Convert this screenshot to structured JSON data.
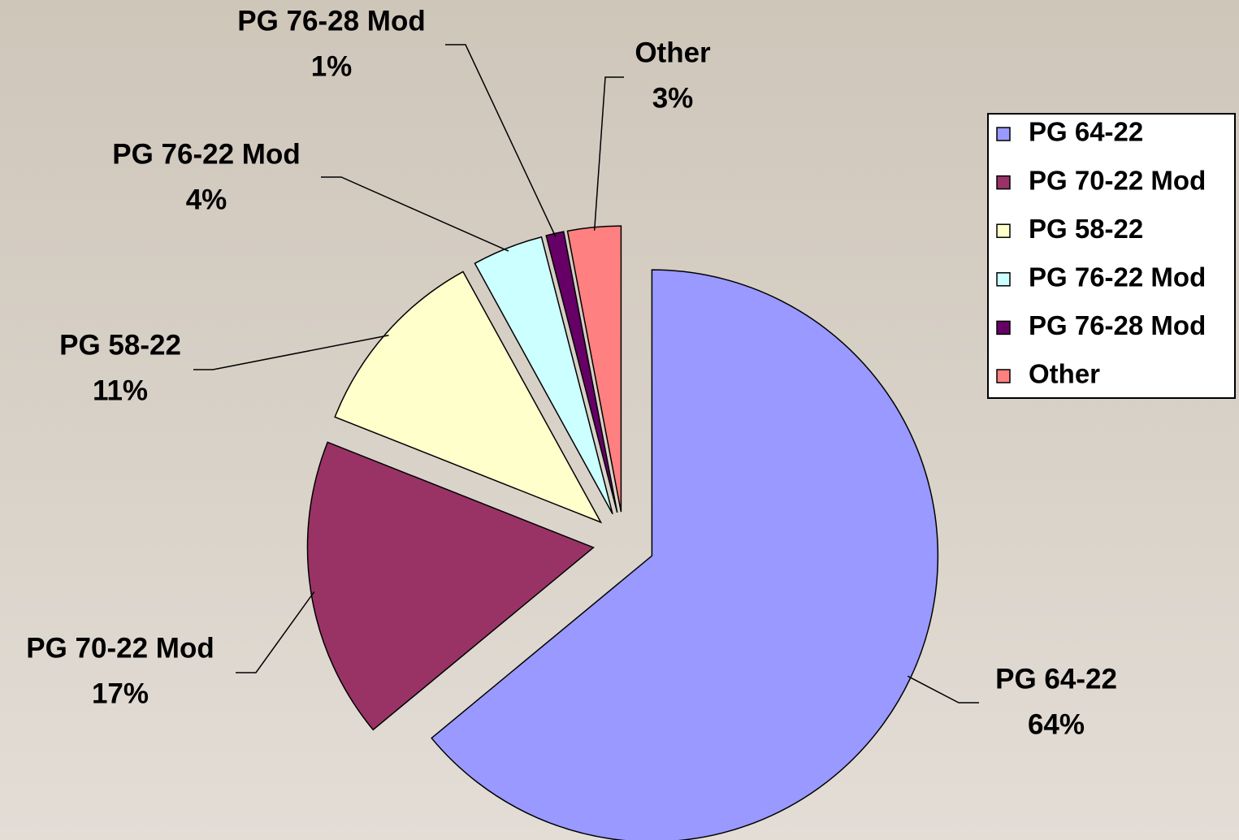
{
  "chart_data": {
    "type": "pie",
    "categories": [
      "PG 64-22",
      "PG 70-22 Mod",
      "PG 58-22",
      "PG 76-22 Mod",
      "PG 76-28 Mod",
      "Other"
    ],
    "values": [
      64,
      17,
      11,
      4,
      1,
      3
    ],
    "value_labels": [
      "64%",
      "17%",
      "11%",
      "4%",
      "1%",
      "3%"
    ],
    "colors": [
      "#9999ff",
      "#993366",
      "#ffffcc",
      "#ccffff",
      "#660066",
      "#ff8080"
    ],
    "legend": "right"
  }
}
